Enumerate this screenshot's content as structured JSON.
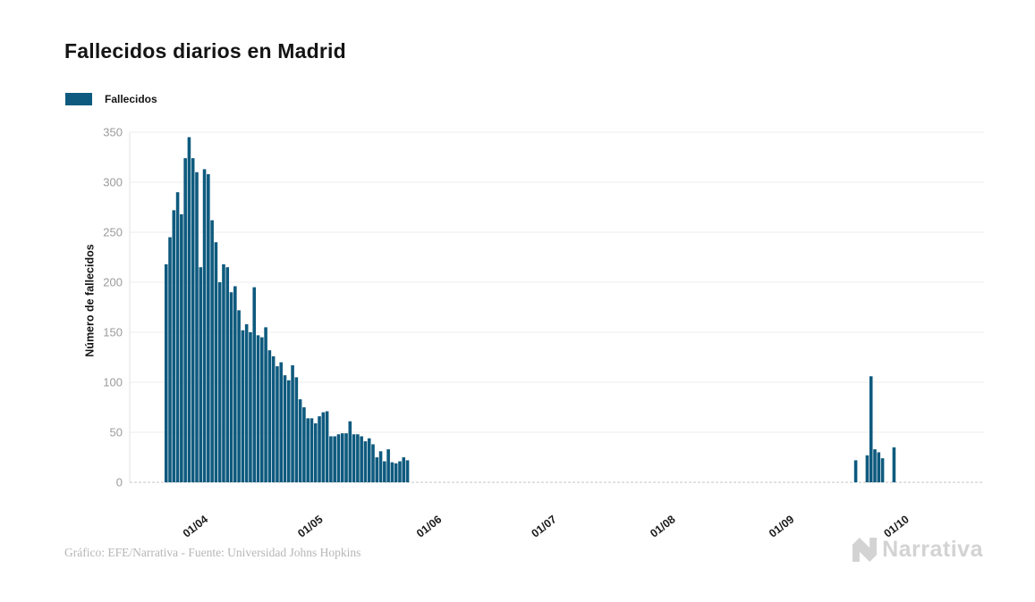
{
  "page": {
    "title": "Fallecidos diarios en Madrid"
  },
  "legend": {
    "label": "Fallecidos"
  },
  "footer": {
    "credit": "Gráfico: EFE/Narrativa - Fuente: Universidad Johns Hopkins"
  },
  "logo": {
    "text": "Narrativa",
    "color": "#d3d3d3"
  },
  "chart_data": {
    "type": "bar",
    "title": "Fallecidos diarios en Madrid",
    "ylabel": "Número de fallecidos",
    "series_name": "Fallecidos",
    "color": "#0e5a7e",
    "background": "#ffffff",
    "grid": "horizontal",
    "legend_position": "top-left",
    "ylim": [
      0,
      350
    ],
    "yticks": [
      0,
      50,
      100,
      150,
      200,
      250,
      300,
      350
    ],
    "x_domain_days": 223,
    "xticks": [
      {
        "day": 18,
        "label": "01/04"
      },
      {
        "day": 48,
        "label": "01/05"
      },
      {
        "day": 79,
        "label": "01/06"
      },
      {
        "day": 109,
        "label": "01/07"
      },
      {
        "day": 140,
        "label": "01/08"
      },
      {
        "day": 171,
        "label": "01/09"
      },
      {
        "day": 201,
        "label": "01/10"
      }
    ],
    "bars_day_value": [
      [
        9,
        218
      ],
      [
        10,
        245
      ],
      [
        11,
        272
      ],
      [
        12,
        290
      ],
      [
        13,
        268
      ],
      [
        14,
        324
      ],
      [
        15,
        345
      ],
      [
        16,
        324
      ],
      [
        17,
        310
      ],
      [
        18,
        215
      ],
      [
        19,
        313
      ],
      [
        20,
        308
      ],
      [
        21,
        262
      ],
      [
        22,
        240
      ],
      [
        23,
        200
      ],
      [
        24,
        218
      ],
      [
        25,
        215
      ],
      [
        26,
        190
      ],
      [
        27,
        196
      ],
      [
        28,
        172
      ],
      [
        29,
        152
      ],
      [
        30,
        158
      ],
      [
        31,
        150
      ],
      [
        32,
        195
      ],
      [
        33,
        147
      ],
      [
        34,
        145
      ],
      [
        35,
        155
      ],
      [
        36,
        132
      ],
      [
        37,
        126
      ],
      [
        38,
        116
      ],
      [
        39,
        120
      ],
      [
        40,
        107
      ],
      [
        41,
        102
      ],
      [
        42,
        117
      ],
      [
        43,
        105
      ],
      [
        44,
        83
      ],
      [
        45,
        75
      ],
      [
        46,
        64
      ],
      [
        47,
        64
      ],
      [
        48,
        59
      ],
      [
        49,
        66
      ],
      [
        50,
        70
      ],
      [
        51,
        71
      ],
      [
        52,
        46
      ],
      [
        53,
        46
      ],
      [
        54,
        48
      ],
      [
        55,
        49
      ],
      [
        56,
        49
      ],
      [
        57,
        61
      ],
      [
        58,
        48
      ],
      [
        59,
        48
      ],
      [
        60,
        46
      ],
      [
        61,
        41
      ],
      [
        62,
        44
      ],
      [
        63,
        38
      ],
      [
        64,
        25
      ],
      [
        65,
        31
      ],
      [
        66,
        21
      ],
      [
        67,
        33
      ],
      [
        68,
        20
      ],
      [
        69,
        19
      ],
      [
        70,
        21
      ],
      [
        71,
        25
      ],
      [
        72,
        22
      ],
      [
        189,
        22
      ],
      [
        192,
        27
      ],
      [
        193,
        106
      ],
      [
        194,
        33
      ],
      [
        195,
        30
      ],
      [
        196,
        24
      ],
      [
        199,
        35
      ]
    ]
  }
}
